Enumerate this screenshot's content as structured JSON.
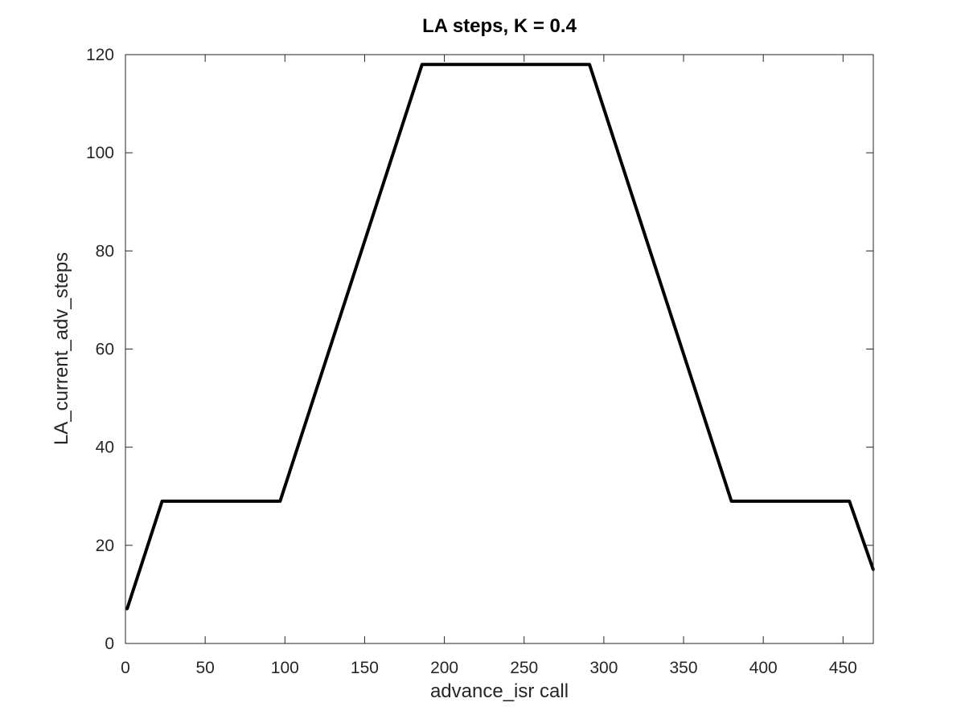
{
  "chart_data": {
    "type": "line",
    "title": "LA steps, K = 0.4",
    "xlabel": "advance_isr call",
    "ylabel": "LA_current_adv_steps",
    "xlim": [
      0,
      469
    ],
    "ylim": [
      0,
      120
    ],
    "xticks": [
      0,
      50,
      100,
      150,
      200,
      250,
      300,
      350,
      400,
      450
    ],
    "yticks": [
      0,
      20,
      40,
      60,
      80,
      100,
      120
    ],
    "grid": false,
    "line_color": "#000000",
    "series": [
      {
        "x": [
          1,
          23,
          97,
          186,
          291,
          380,
          454,
          469
        ],
        "y": [
          7,
          29,
          29,
          118,
          118,
          29,
          29,
          15
        ]
      }
    ]
  }
}
